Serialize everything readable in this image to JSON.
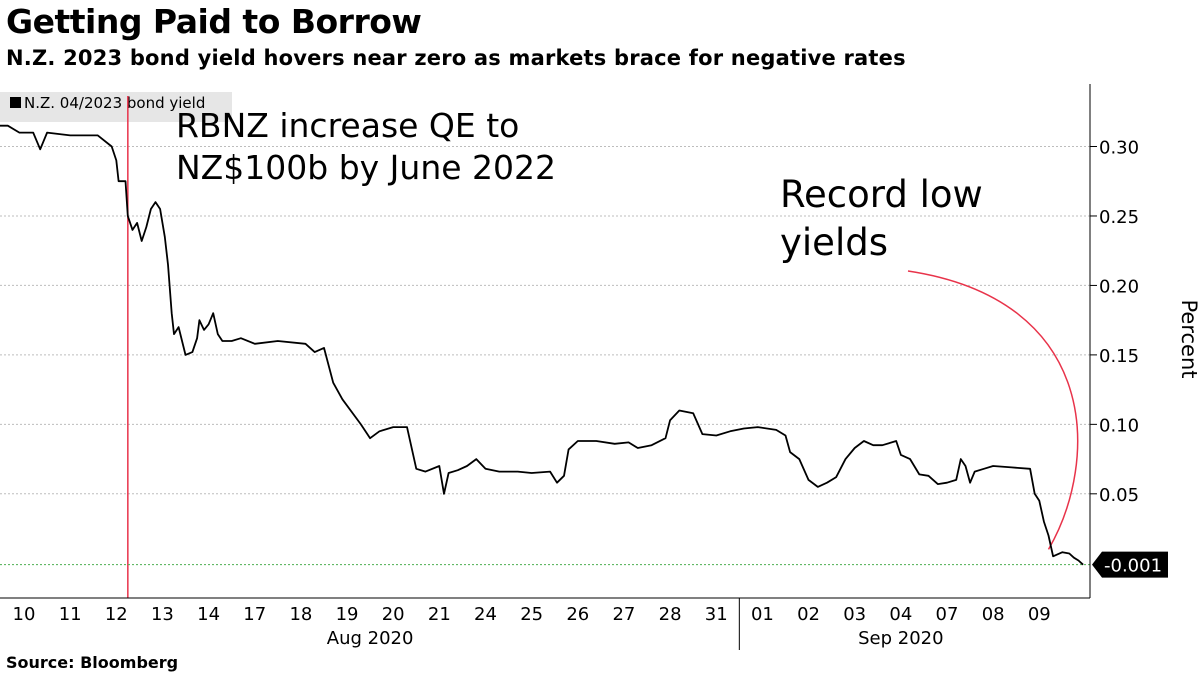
{
  "header": {
    "title": "Getting Paid to Borrow",
    "subtitle": "N.Z. 2023 bond yield hovers near zero as markets brace for negative rates"
  },
  "footer": {
    "source": "Source: Bloomberg"
  },
  "colors": {
    "line": "#000000",
    "annotation": "#e8334a",
    "grid": "#bdbdbd",
    "last_line": "#4caf50",
    "legend_bg": "#e6e6e6"
  },
  "chart_data": {
    "type": "line",
    "title": "Getting Paid to Borrow",
    "subtitle": "N.Z. 2023 bond yield hovers near zero as markets brace for negative rates",
    "ylabel": "Percent",
    "ylim": [
      -0.025,
      0.345
    ],
    "yticks": [
      0.05,
      0.1,
      0.15,
      0.2,
      0.25,
      0.3
    ],
    "ytick_labels": [
      "0.05",
      "0.10",
      "0.15",
      "0.20",
      "0.25",
      "0.30"
    ],
    "grid": true,
    "y_axis_side": "right",
    "legend": {
      "position": "top-left",
      "entries": [
        "N.Z. 04/2023 bond yield"
      ]
    },
    "x_tick_labels": [
      "10",
      "11",
      "12",
      "13",
      "14",
      "17",
      "18",
      "19",
      "20",
      "21",
      "24",
      "25",
      "26",
      "27",
      "28",
      "31",
      "01",
      "02",
      "03",
      "04",
      "07",
      "08",
      "09"
    ],
    "months": [
      {
        "label": "Aug 2020"
      },
      {
        "label": "Sep 2020"
      }
    ],
    "last_value_label": "-0.001",
    "last_value": -0.001,
    "annotations": [
      {
        "text_lines": [
          "RBNZ increase QE to",
          "NZ$100b by June 2022"
        ],
        "at_x": 2.25,
        "kind": "vertical-line"
      },
      {
        "text_lines": [
          "Record low",
          "yields"
        ],
        "kind": "arrow",
        "target_x": 22.2,
        "target_y": 0.01
      }
    ],
    "series": [
      {
        "name": "N.Z. 04/2023 bond yield",
        "points": [
          [
            -0.55,
            0.315
          ],
          [
            -0.35,
            0.315
          ],
          [
            -0.1,
            0.31
          ],
          [
            0.2,
            0.31
          ],
          [
            0.35,
            0.298
          ],
          [
            0.5,
            0.31
          ],
          [
            1.0,
            0.308
          ],
          [
            1.6,
            0.308
          ],
          [
            1.9,
            0.3
          ],
          [
            2.0,
            0.29
          ],
          [
            2.05,
            0.275
          ],
          [
            2.2,
            0.275
          ],
          [
            2.25,
            0.25
          ],
          [
            2.35,
            0.24
          ],
          [
            2.45,
            0.245
          ],
          [
            2.55,
            0.232
          ],
          [
            2.65,
            0.242
          ],
          [
            2.75,
            0.255
          ],
          [
            2.85,
            0.26
          ],
          [
            2.95,
            0.255
          ],
          [
            3.05,
            0.235
          ],
          [
            3.12,
            0.215
          ],
          [
            3.2,
            0.18
          ],
          [
            3.25,
            0.165
          ],
          [
            3.35,
            0.17
          ],
          [
            3.5,
            0.15
          ],
          [
            3.65,
            0.152
          ],
          [
            3.75,
            0.162
          ],
          [
            3.8,
            0.175
          ],
          [
            3.9,
            0.168
          ],
          [
            4.0,
            0.172
          ],
          [
            4.1,
            0.18
          ],
          [
            4.2,
            0.165
          ],
          [
            4.3,
            0.16
          ],
          [
            4.5,
            0.16
          ],
          [
            4.7,
            0.162
          ],
          [
            5.0,
            0.158
          ],
          [
            5.5,
            0.16
          ],
          [
            6.1,
            0.158
          ],
          [
            6.3,
            0.152
          ],
          [
            6.5,
            0.155
          ],
          [
            6.7,
            0.13
          ],
          [
            6.9,
            0.118
          ],
          [
            7.3,
            0.1
          ],
          [
            7.5,
            0.09
          ],
          [
            7.7,
            0.095
          ],
          [
            8.0,
            0.098
          ],
          [
            8.3,
            0.098
          ],
          [
            8.5,
            0.068
          ],
          [
            8.7,
            0.066
          ],
          [
            9.0,
            0.07
          ],
          [
            9.1,
            0.05
          ],
          [
            9.2,
            0.065
          ],
          [
            9.4,
            0.067
          ],
          [
            9.6,
            0.07
          ],
          [
            9.8,
            0.075
          ],
          [
            10.0,
            0.068
          ],
          [
            10.3,
            0.066
          ],
          [
            10.7,
            0.066
          ],
          [
            11.0,
            0.065
          ],
          [
            11.4,
            0.066
          ],
          [
            11.55,
            0.058
          ],
          [
            11.7,
            0.063
          ],
          [
            11.8,
            0.082
          ],
          [
            12.0,
            0.088
          ],
          [
            12.4,
            0.088
          ],
          [
            12.8,
            0.086
          ],
          [
            13.1,
            0.087
          ],
          [
            13.3,
            0.083
          ],
          [
            13.6,
            0.085
          ],
          [
            13.9,
            0.09
          ],
          [
            14.0,
            0.103
          ],
          [
            14.2,
            0.11
          ],
          [
            14.5,
            0.108
          ],
          [
            14.7,
            0.093
          ],
          [
            15.0,
            0.092
          ],
          [
            15.3,
            0.095
          ],
          [
            15.6,
            0.097
          ],
          [
            15.9,
            0.098
          ],
          [
            16.3,
            0.096
          ],
          [
            16.5,
            0.092
          ],
          [
            16.6,
            0.08
          ],
          [
            16.8,
            0.075
          ],
          [
            17.0,
            0.06
          ],
          [
            17.2,
            0.055
          ],
          [
            17.4,
            0.058
          ],
          [
            17.6,
            0.062
          ],
          [
            17.8,
            0.075
          ],
          [
            18.0,
            0.083
          ],
          [
            18.2,
            0.088
          ],
          [
            18.4,
            0.085
          ],
          [
            18.6,
            0.085
          ],
          [
            18.9,
            0.088
          ],
          [
            19.0,
            0.078
          ],
          [
            19.2,
            0.075
          ],
          [
            19.4,
            0.064
          ],
          [
            19.6,
            0.063
          ],
          [
            19.8,
            0.057
          ],
          [
            20.0,
            0.058
          ],
          [
            20.2,
            0.06
          ],
          [
            20.3,
            0.075
          ],
          [
            20.4,
            0.07
          ],
          [
            20.5,
            0.058
          ],
          [
            20.6,
            0.066
          ],
          [
            20.8,
            0.068
          ],
          [
            21.0,
            0.07
          ],
          [
            21.4,
            0.069
          ],
          [
            21.8,
            0.068
          ],
          [
            21.9,
            0.05
          ],
          [
            22.0,
            0.045
          ],
          [
            22.1,
            0.03
          ],
          [
            22.2,
            0.02
          ],
          [
            22.3,
            0.005
          ],
          [
            22.5,
            0.008
          ],
          [
            22.65,
            0.007
          ],
          [
            22.75,
            0.004
          ],
          [
            22.85,
            0.002
          ],
          [
            22.95,
            -0.001
          ]
        ]
      }
    ]
  }
}
